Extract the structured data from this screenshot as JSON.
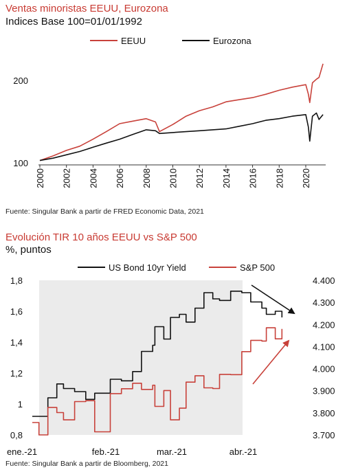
{
  "chart1": {
    "title": "Ventas minoristas EEUU, Eurozona",
    "subtitle": "Indices Base 100=01/01/1992",
    "source": "Fuente: Singular Bank a partir de FRED Economic Data, 2021",
    "colors": {
      "EEUU": "#c8413a",
      "Eurozona": "#111111"
    }
  },
  "chart2": {
    "title": "Evolución TIR 10 años EEUU vs S&P 500",
    "subtitle": "%, puntos",
    "source": "Fuente: Singular Bank a partir de Bloomberg, 2021",
    "colors": {
      "US Bond 10yr Yield": "#111111",
      "S&P 500": "#c8413a",
      "shade": "#ebebeb"
    }
  },
  "chart_data": [
    {
      "type": "line",
      "title": "Ventas minoristas EEUU, Eurozona",
      "subtitle": "Indices Base 100=01/01/1992",
      "legend": "top-center",
      "grid": false,
      "log_scale_y": true,
      "xlim": [
        2000,
        2021.5
      ],
      "ylim": [
        100,
        235
      ],
      "x_ticks": [
        "2000",
        "2002",
        "2004",
        "2006",
        "2008",
        "2010",
        "2012",
        "2014",
        "2016",
        "2018",
        "2020"
      ],
      "y_ticks": [
        "100",
        "200"
      ],
      "series": [
        {
          "name": "EEUU",
          "x": [
            2000,
            2001,
            2002,
            2003,
            2004,
            2005,
            2006,
            2007,
            2008,
            2008.7,
            2009,
            2010,
            2011,
            2012,
            2013,
            2014,
            2015,
            2016,
            2017,
            2018,
            2019,
            2020.0,
            2020.2,
            2020.3,
            2020.5,
            2020.8,
            2021.0,
            2021.3
          ],
          "y": [
            102,
            106,
            111,
            115,
            122,
            130,
            139,
            142,
            145,
            141,
            130,
            138,
            148,
            155,
            160,
            167,
            170,
            173,
            178,
            184,
            189,
            193,
            178,
            166,
            196,
            202,
            205,
            230
          ]
        },
        {
          "name": "Eurozona",
          "x": [
            2000,
            2001,
            2002,
            2003,
            2004,
            2005,
            2006,
            2007,
            2008,
            2008.7,
            2009,
            2010,
            2011,
            2012,
            2013,
            2014,
            2015,
            2016,
            2017,
            2018,
            2019,
            2020.0,
            2020.2,
            2020.3,
            2020.5,
            2020.8,
            2021.0,
            2021.3
          ],
          "y": [
            102,
            104,
            107,
            110,
            114,
            118,
            122,
            127,
            132,
            131,
            128,
            129,
            130,
            131,
            132,
            133,
            136,
            139,
            143,
            145,
            148,
            150,
            135,
            120,
            148,
            152,
            144,
            150
          ]
        }
      ]
    },
    {
      "type": "line",
      "title": "Evolución TIR 10 años EEUU vs S&P 500",
      "subtitle": "%, puntos",
      "legend": "top-center",
      "grid": false,
      "x_ticks": [
        "ene.-21",
        "feb.-21",
        "mar.-21",
        "abr.-21"
      ],
      "shaded_region": [
        "ene.-21",
        "abr.-21"
      ],
      "y_left": {
        "range": [
          0.8,
          1.8
        ],
        "ticks": [
          "0,8",
          "1",
          "1,2",
          "1,4",
          "1,6",
          "1,8"
        ]
      },
      "y_right": {
        "range": [
          3700,
          4400
        ],
        "ticks": [
          "3.700",
          "3.800",
          "3.900",
          "4.000",
          "4.100",
          "4.200",
          "4.300",
          "4.400"
        ]
      },
      "series": [
        {
          "name": "US Bond 10yr Yield",
          "axis": "left",
          "x": [
            "2021-01-01",
            "2021-01-06",
            "2021-01-08",
            "2021-01-12",
            "2021-01-15",
            "2021-01-20",
            "2021-01-25",
            "2021-01-29",
            "2021-02-05",
            "2021-02-10",
            "2021-02-15",
            "2021-02-19",
            "2021-02-24",
            "2021-02-25",
            "2021-03-01",
            "2021-03-04",
            "2021-03-08",
            "2021-03-11",
            "2021-03-15",
            "2021-03-19",
            "2021-03-23",
            "2021-03-26",
            "2021-03-31",
            "2021-04-05",
            "2021-04-09",
            "2021-04-14",
            "2021-04-16",
            "2021-04-20",
            "2021-04-23"
          ],
          "y": [
            0.92,
            0.92,
            1.04,
            1.13,
            1.1,
            1.08,
            1.03,
            1.07,
            1.16,
            1.15,
            1.21,
            1.34,
            1.38,
            1.5,
            1.42,
            1.56,
            1.58,
            1.53,
            1.62,
            1.72,
            1.68,
            1.67,
            1.73,
            1.72,
            1.66,
            1.62,
            1.58,
            1.6,
            1.56
          ]
        },
        {
          "name": "S&P 500",
          "axis": "right",
          "x": [
            "2021-01-01",
            "2021-01-04",
            "2021-01-08",
            "2021-01-12",
            "2021-01-15",
            "2021-01-20",
            "2021-01-25",
            "2021-01-29",
            "2021-02-05",
            "2021-02-10",
            "2021-02-15",
            "2021-02-19",
            "2021-02-24",
            "2021-02-25",
            "2021-03-01",
            "2021-03-04",
            "2021-03-08",
            "2021-03-11",
            "2021-03-15",
            "2021-03-19",
            "2021-03-23",
            "2021-03-26",
            "2021-03-31",
            "2021-04-05",
            "2021-04-09",
            "2021-04-14",
            "2021-04-16",
            "2021-04-20",
            "2021-04-23"
          ],
          "y": [
            3756,
            3700,
            3824,
            3801,
            3768,
            3851,
            3855,
            3714,
            3887,
            3909,
            3934,
            3906,
            3925,
            3829,
            3901,
            3768,
            3821,
            3939,
            3968,
            3913,
            3910,
            3974,
            3973,
            4077,
            4128,
            4125,
            4185,
            4135,
            4180
          ]
        }
      ]
    }
  ]
}
